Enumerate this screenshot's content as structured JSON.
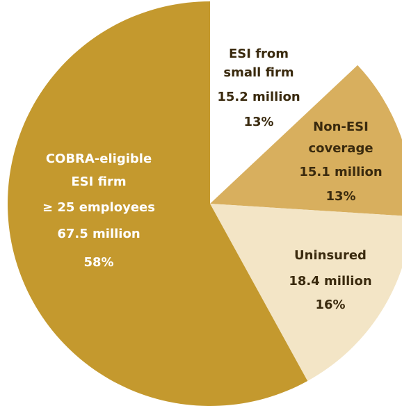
{
  "chart_data": {
    "type": "pie",
    "categories": [
      [
        "ESI from",
        "small firm"
      ],
      [
        "Non-ESI",
        "coverage"
      ],
      [
        "Uninsured"
      ],
      [
        "COBRA-eligible",
        "ESI firm",
        "≥ 25 employees"
      ]
    ],
    "amounts": [
      {
        "value": 15.2,
        "label": "15.2 million"
      },
      {
        "value": 15.1,
        "label": "15.1 million"
      },
      {
        "value": 18.4,
        "label": "18.4 million"
      },
      {
        "value": 67.5,
        "label": "67.5 million"
      }
    ],
    "values": [
      13,
      13,
      16,
      58
    ],
    "value_labels": [
      "13%",
      "13%",
      "16%",
      "58%"
    ],
    "colors": [
      "#ffffff",
      "#d8af5e",
      "#f3e5c6",
      "#c4992e"
    ]
  }
}
